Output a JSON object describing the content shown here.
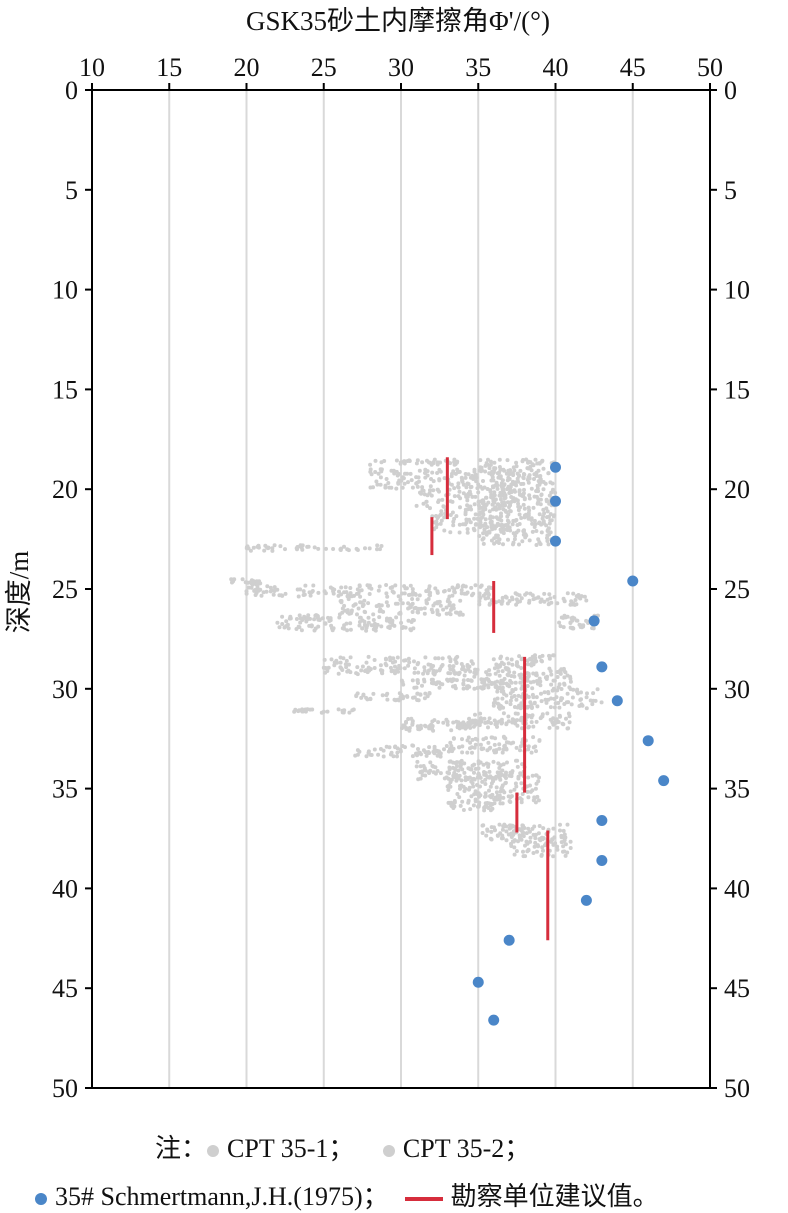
{
  "colors": {
    "cpt": "#cfcfcf",
    "schmertmann": "#4a86c8",
    "survey": "#d62d3c",
    "grid": "#d9d9d9",
    "axis": "#000000"
  },
  "chart_data": {
    "type": "scatter",
    "title": "GSK35砂土内摩擦角Φ'/(°)",
    "xlabel": "GSK35砂土内摩擦角Φ'/(°)",
    "ylabel": "深度/m",
    "xlim": [
      10,
      50
    ],
    "ylim": [
      0,
      50
    ],
    "y_inverted": true,
    "x_axis_position": "top",
    "x_ticks": [
      10,
      15,
      20,
      25,
      30,
      35,
      40,
      45,
      50
    ],
    "y_ticks": [
      0,
      5,
      10,
      15,
      20,
      25,
      30,
      35,
      40,
      45,
      50
    ],
    "grid": "vertical",
    "legend_position": "bottom",
    "series": [
      {
        "name": "CPT 35-1",
        "kind": "points",
        "color": "#cfcfcf",
        "bands": [
          {
            "depth": [
              18.5,
              18.8
            ],
            "x": [
              28,
              34
            ]
          },
          {
            "depth": [
              19.0,
              20.0
            ],
            "x": [
              28,
              37
            ]
          },
          {
            "depth": [
              20.0,
              21.0
            ],
            "x": [
              31,
              38
            ]
          },
          {
            "depth": [
              21.0,
              22.2
            ],
            "x": [
              32,
              37
            ]
          },
          {
            "depth": [
              22.8,
              23.1
            ],
            "x": [
              20,
              29
            ]
          },
          {
            "depth": [
              24.5,
              24.8
            ],
            "x": [
              19,
              21
            ]
          },
          {
            "depth": [
              24.8,
              25.4
            ],
            "x": [
              20,
              36
            ]
          },
          {
            "depth": [
              25.5,
              26.3
            ],
            "x": [
              26,
              34
            ]
          },
          {
            "depth": [
              26.3,
              27.1
            ],
            "x": [
              22,
              31
            ]
          },
          {
            "depth": [
              28.4,
              29.3
            ],
            "x": [
              25,
              35
            ]
          },
          {
            "depth": [
              29.5,
              30.0
            ],
            "x": [
              30,
              37
            ]
          },
          {
            "depth": [
              30.2,
              30.6
            ],
            "x": [
              27,
              32
            ]
          },
          {
            "depth": [
              31.0,
              31.2
            ],
            "x": [
              23,
              27
            ]
          },
          {
            "depth": [
              31.5,
              32.1
            ],
            "x": [
              30,
              37
            ]
          },
          {
            "depth": [
              32.8,
              33.4
            ],
            "x": [
              27,
              33
            ]
          },
          {
            "depth": [
              33.6,
              34.6
            ],
            "x": [
              31,
              38
            ]
          },
          {
            "depth": [
              35.7,
              36.1
            ],
            "x": [
              33,
              36
            ]
          },
          {
            "depth": [
              36.8,
              37.6
            ],
            "x": [
              35,
              38
            ]
          }
        ]
      },
      {
        "name": "CPT 35-2",
        "kind": "points",
        "color": "#cfcfcf",
        "bands": [
          {
            "depth": [
              18.5,
              19.2
            ],
            "x": [
              35,
              40
            ]
          },
          {
            "depth": [
              19.2,
              20.5
            ],
            "x": [
              36,
              40
            ]
          },
          {
            "depth": [
              20.5,
              22.8
            ],
            "x": [
              35,
              40
            ]
          },
          {
            "depth": [
              25.2,
              25.8
            ],
            "x": [
              35,
              42
            ]
          },
          {
            "depth": [
              26.3,
              27.0
            ],
            "x": [
              40,
              43
            ]
          },
          {
            "depth": [
              28.3,
              29.0
            ],
            "x": [
              36,
              40
            ]
          },
          {
            "depth": [
              29.0,
              30.0
            ],
            "x": [
              34,
              41
            ]
          },
          {
            "depth": [
              30.0,
              31.0
            ],
            "x": [
              36,
              43
            ]
          },
          {
            "depth": [
              31.2,
              32.0
            ],
            "x": [
              34,
              41
            ]
          },
          {
            "depth": [
              32.4,
              33.2
            ],
            "x": [
              33,
              39
            ]
          },
          {
            "depth": [
              34.2,
              35.8
            ],
            "x": [
              33,
              39
            ]
          },
          {
            "depth": [
              36.8,
              38.4
            ],
            "x": [
              37,
              41
            ]
          }
        ]
      },
      {
        "name": "35# Schmertmann,J.H.(1975)",
        "kind": "dots",
        "color": "#4a86c8",
        "points": [
          {
            "x": 40.0,
            "y": 18.9
          },
          {
            "x": 40.0,
            "y": 20.6
          },
          {
            "x": 40.0,
            "y": 22.6
          },
          {
            "x": 45.0,
            "y": 24.6
          },
          {
            "x": 42.5,
            "y": 26.6
          },
          {
            "x": 43.0,
            "y": 28.9
          },
          {
            "x": 44.0,
            "y": 30.6
          },
          {
            "x": 46.0,
            "y": 32.6
          },
          {
            "x": 47.0,
            "y": 34.6
          },
          {
            "x": 43.0,
            "y": 36.6
          },
          {
            "x": 43.0,
            "y": 38.6
          },
          {
            "x": 42.0,
            "y": 40.6
          },
          {
            "x": 37.0,
            "y": 42.6
          },
          {
            "x": 35.0,
            "y": 44.7
          },
          {
            "x": 36.0,
            "y": 46.6
          }
        ]
      },
      {
        "name": "勘察单位建议值",
        "kind": "segments",
        "color": "#d62d3c",
        "segments": [
          {
            "x": 33.0,
            "from": 18.4,
            "to": 21.5
          },
          {
            "x": 32.0,
            "from": 21.4,
            "to": 23.3
          },
          {
            "x": 36.0,
            "from": 24.6,
            "to": 27.2
          },
          {
            "x": 38.0,
            "from": 28.4,
            "to": 35.2
          },
          {
            "x": 37.5,
            "from": 35.2,
            "to": 37.2
          },
          {
            "x": 39.5,
            "from": 37.1,
            "to": 42.6
          }
        ]
      }
    ]
  },
  "legend": {
    "note_label": "注：",
    "cpt1_label": "CPT 35-1；",
    "cpt2_label": "CPT 35-2；",
    "schmertmann_label": "35# Schmertmann,J.H.(1975)；",
    "survey_label": "勘察单位建议值。"
  }
}
